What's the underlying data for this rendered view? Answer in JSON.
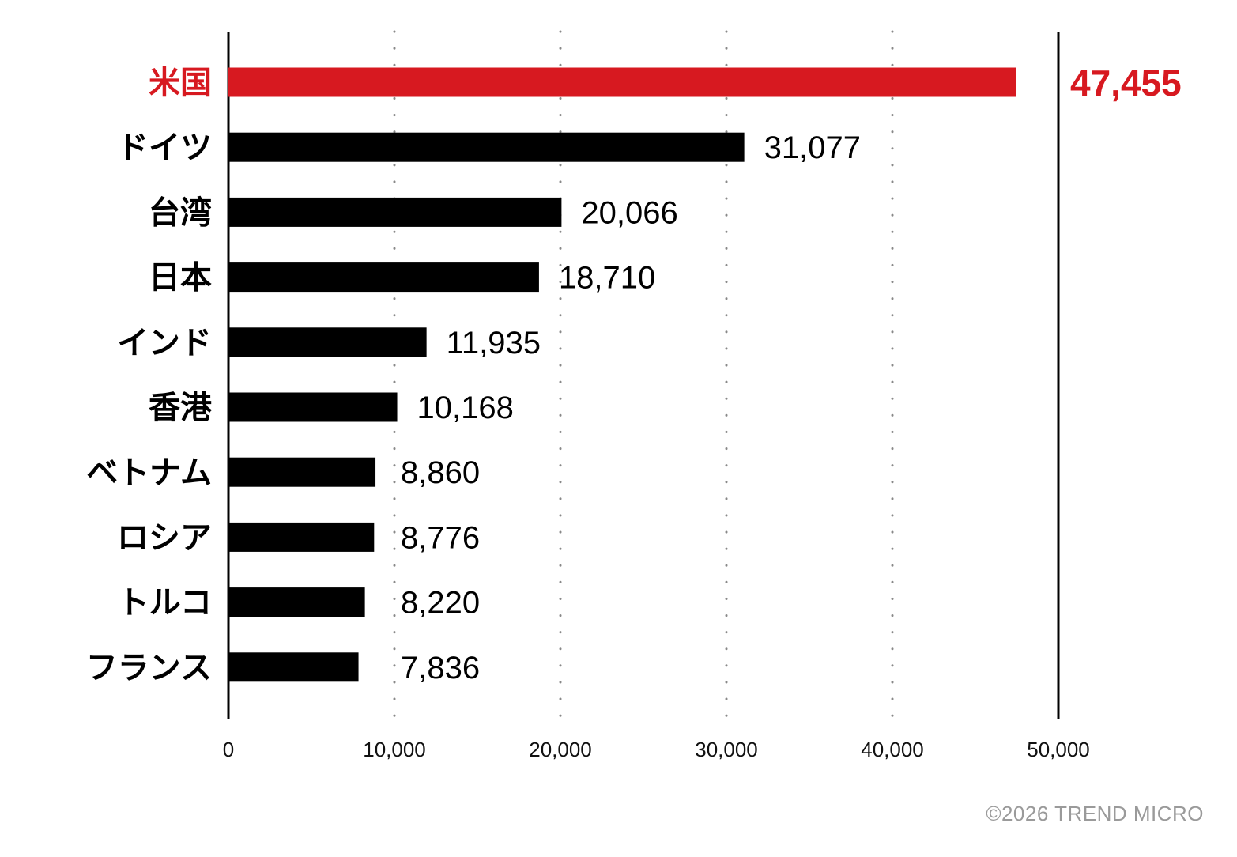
{
  "chart_data": {
    "type": "bar",
    "orientation": "horizontal",
    "categories": [
      "米国",
      "ドイツ",
      "台湾",
      "日本",
      "インド",
      "香港",
      "ベトナム",
      "ロシア",
      "トルコ",
      "フランス"
    ],
    "values": [
      47455,
      31077,
      20066,
      18710,
      11935,
      10168,
      8860,
      8776,
      8220,
      7836
    ],
    "value_labels": [
      "47,455",
      "31,077",
      "20,066",
      "18,710",
      "11,935",
      "10,168",
      "8,860",
      "8,776",
      "8,220",
      "7,836"
    ],
    "highlight_index": 0,
    "xlim": [
      0,
      50000
    ],
    "x_ticks": [
      0,
      10000,
      20000,
      30000,
      40000,
      50000
    ],
    "x_tick_labels": [
      "0",
      "10,000",
      "20,000",
      "30,000",
      "40,000",
      "50,000"
    ],
    "grid": "vertical dotted",
    "title": "",
    "xlabel": "",
    "ylabel": ""
  },
  "colors": {
    "bar": "#000000",
    "highlight": "#d71920",
    "gridline": "#888888",
    "copyright": "#9a9a9a"
  },
  "copyright": "©2026 TREND MICRO"
}
